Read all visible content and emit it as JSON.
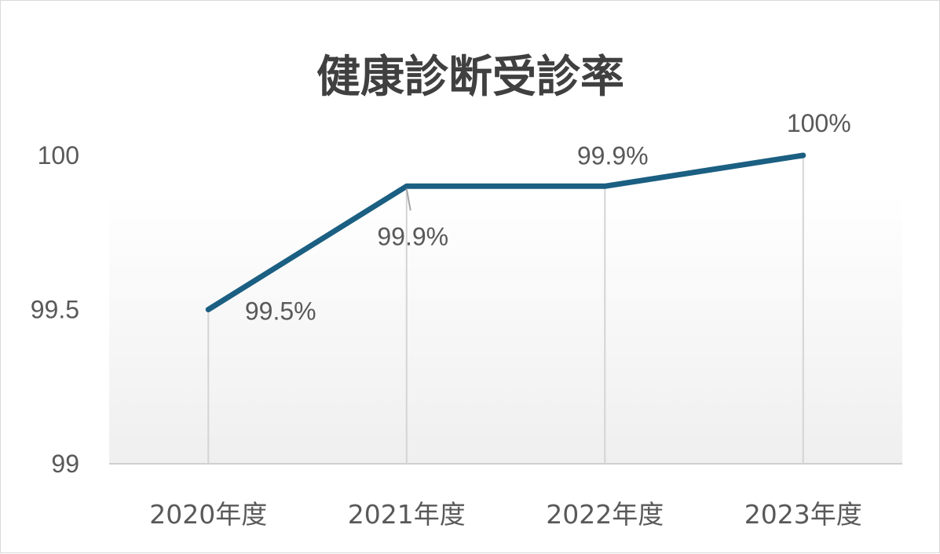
{
  "chart_data": {
    "type": "line",
    "title": "健康診断受診率",
    "categories": [
      "2020年度",
      "2021年度",
      "2022年度",
      "2023年度"
    ],
    "series": [
      {
        "values": [
          99.5,
          99.9,
          99.9,
          100
        ],
        "color": "#1b5f82"
      }
    ],
    "data_labels": [
      "99.5%",
      "99.9%",
      "99.9%",
      "100%"
    ],
    "ylim": [
      99,
      100
    ],
    "yticks": [
      {
        "value": 99,
        "label": "99"
      },
      {
        "value": 99.5,
        "label": "99.5"
      },
      {
        "value": 100,
        "label": "100"
      }
    ],
    "drop_lines": true,
    "grid": false,
    "legend": "none",
    "xlabel": "",
    "ylabel": ""
  }
}
